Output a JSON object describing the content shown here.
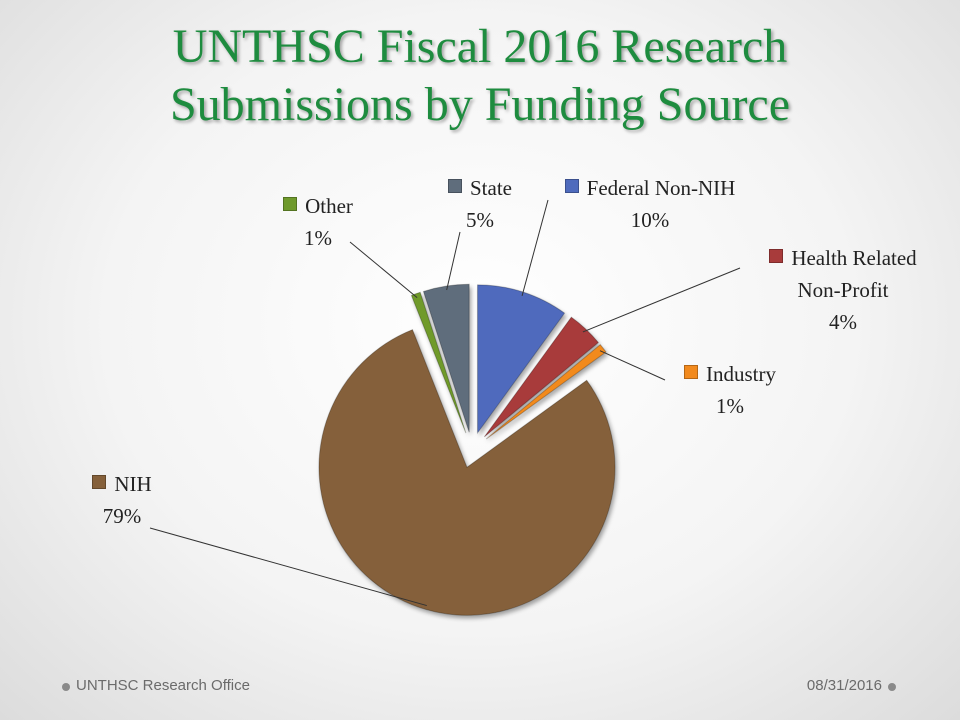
{
  "title": "UNTHSC Fiscal 2016 Research Submissions by Funding Source",
  "chart_data": {
    "type": "pie",
    "categories": [
      "Federal Non-NIH",
      "Health Related Non-Profit",
      "Industry",
      "NIH",
      "Other",
      "State"
    ],
    "values": [
      10,
      4,
      1,
      79,
      1,
      5
    ],
    "value_labels": [
      "10%",
      "4%",
      "1%",
      "79%",
      "1%",
      "5%"
    ],
    "colors": [
      "#4f6bbd",
      "#a83b3b",
      "#f28a1e",
      "#85603a",
      "#6f9a2c",
      "#5f6d7c"
    ]
  },
  "footer": {
    "left": "UNTHSC Research Office",
    "right": "08/31/2016"
  }
}
